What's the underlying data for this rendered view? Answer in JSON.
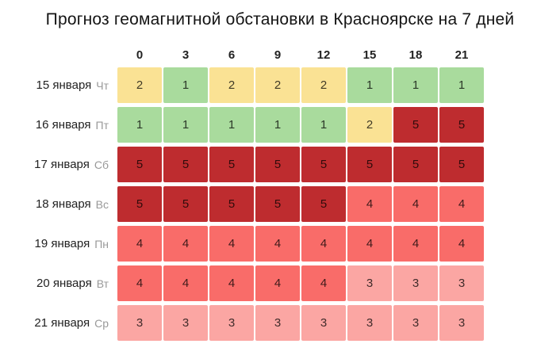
{
  "chart_data": {
    "type": "heatmap",
    "title": "Прогноз геомагнитной обстановки в Красноярске на 7 дней",
    "x_hours": [
      "0",
      "3",
      "6",
      "9",
      "12",
      "15",
      "18",
      "21"
    ],
    "rows": [
      {
        "date": "15 января",
        "weekday": "Чт",
        "values": [
          2,
          1,
          2,
          2,
          2,
          1,
          1,
          1
        ]
      },
      {
        "date": "16 января",
        "weekday": "Пт",
        "values": [
          1,
          1,
          1,
          1,
          1,
          2,
          5,
          5
        ]
      },
      {
        "date": "17 января",
        "weekday": "Сб",
        "values": [
          5,
          5,
          5,
          5,
          5,
          5,
          5,
          5
        ]
      },
      {
        "date": "18 января",
        "weekday": "Вс",
        "values": [
          5,
          5,
          5,
          5,
          5,
          4,
          4,
          4
        ]
      },
      {
        "date": "19 января",
        "weekday": "Пн",
        "values": [
          4,
          4,
          4,
          4,
          4,
          4,
          4,
          4
        ]
      },
      {
        "date": "20 января",
        "weekday": "Вт",
        "values": [
          4,
          4,
          4,
          4,
          4,
          3,
          3,
          3
        ]
      },
      {
        "date": "21 января",
        "weekday": "Ср",
        "values": [
          3,
          3,
          3,
          3,
          3,
          3,
          3,
          3
        ]
      }
    ],
    "value_colors": {
      "1": "#a9db9d",
      "2": "#fae294",
      "3": "#fba6a3",
      "4": "#f96c69",
      "5": "#be2c2f"
    },
    "value_min": 1,
    "value_max": 5,
    "legend": "off",
    "grid": "off",
    "xlabel": "",
    "ylabel": ""
  }
}
